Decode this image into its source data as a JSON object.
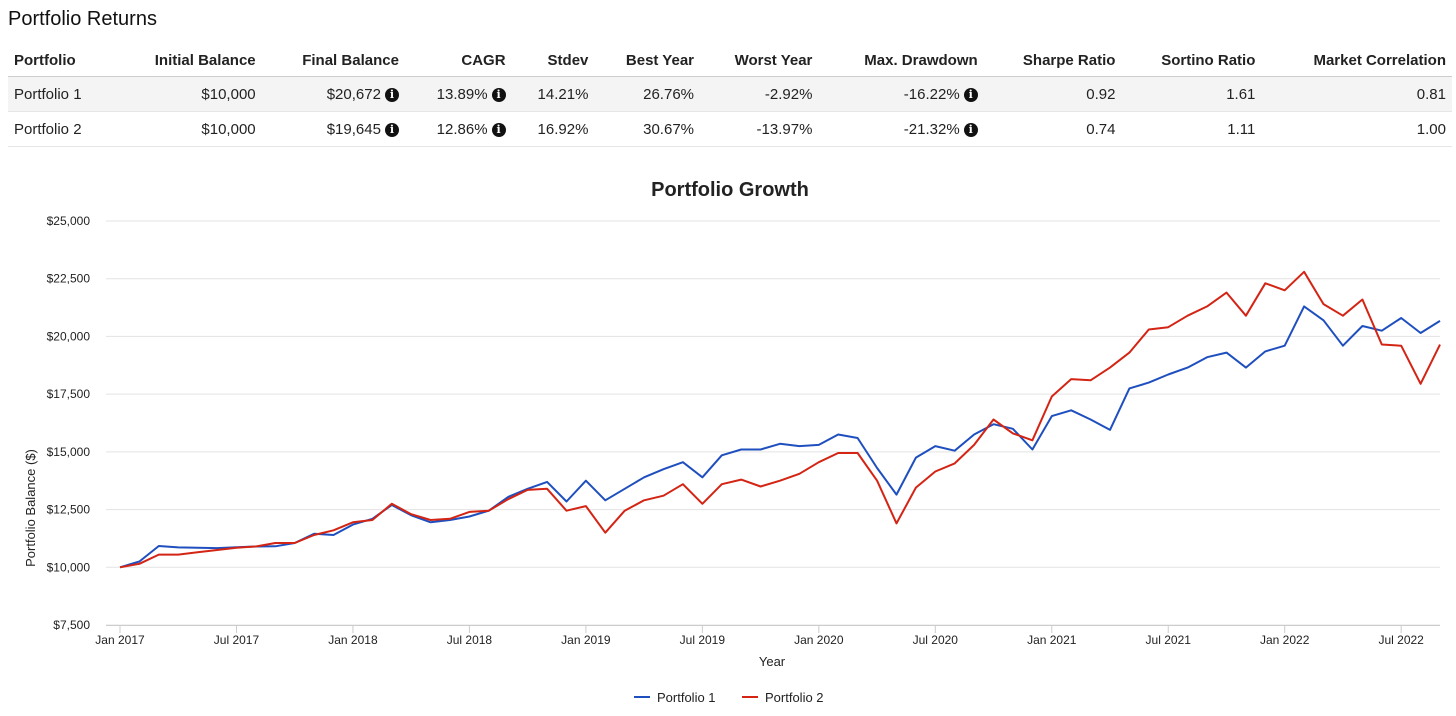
{
  "title": "Portfolio Returns",
  "table": {
    "headers": [
      "Portfolio",
      "Initial Balance",
      "Final Balance",
      "CAGR",
      "Stdev",
      "Best Year",
      "Worst Year",
      "Max. Drawdown",
      "Sharpe Ratio",
      "Sortino Ratio",
      "Market Correlation"
    ],
    "rows": [
      {
        "portfolio": "Portfolio 1",
        "initial": "$10,000",
        "final": "$20,672",
        "cagr": "13.89%",
        "stdev": "14.21%",
        "best": "26.76%",
        "worst": "-2.92%",
        "drawdown": "-16.22%",
        "sharpe": "0.92",
        "sortino": "1.61",
        "correlation": "0.81"
      },
      {
        "portfolio": "Portfolio 2",
        "initial": "$10,000",
        "final": "$19,645",
        "cagr": "12.86%",
        "stdev": "16.92%",
        "best": "30.67%",
        "worst": "-13.97%",
        "drawdown": "-21.32%",
        "sharpe": "0.74",
        "sortino": "1.11",
        "correlation": "1.00"
      }
    ],
    "info_icon": "info-circle-icon"
  },
  "chart_data": {
    "type": "line",
    "title": "Portfolio Growth",
    "xlabel": "Year",
    "ylabel": "Portfolio Balance ($)",
    "ylim": [
      7500,
      25000
    ],
    "yticks": [
      {
        "value": 7500,
        "label": "$7,500"
      },
      {
        "value": 10000,
        "label": "$10,000"
      },
      {
        "value": 12500,
        "label": "$12,500"
      },
      {
        "value": 15000,
        "label": "$15,000"
      },
      {
        "value": 17500,
        "label": "$17,500"
      },
      {
        "value": 20000,
        "label": "$20,000"
      },
      {
        "value": 22500,
        "label": "$22,500"
      },
      {
        "value": 25000,
        "label": "$25,000"
      }
    ],
    "xlim": [
      "2017-01",
      "2022-09"
    ],
    "xticks": [
      {
        "value": "2017-01",
        "label": "Jan 2017"
      },
      {
        "value": "2017-07",
        "label": "Jul 2017"
      },
      {
        "value": "2018-01",
        "label": "Jan 2018"
      },
      {
        "value": "2018-07",
        "label": "Jul 2018"
      },
      {
        "value": "2019-01",
        "label": "Jan 2019"
      },
      {
        "value": "2019-07",
        "label": "Jul 2019"
      },
      {
        "value": "2020-01",
        "label": "Jan 2020"
      },
      {
        "value": "2020-07",
        "label": "Jul 2020"
      },
      {
        "value": "2021-01",
        "label": "Jan 2021"
      },
      {
        "value": "2021-07",
        "label": "Jul 2021"
      },
      {
        "value": "2022-01",
        "label": "Jan 2022"
      },
      {
        "value": "2022-07",
        "label": "Jul 2022"
      }
    ],
    "grid": true,
    "legend": "bottom-center",
    "series": [
      {
        "name": "Portfolio 1",
        "color": "#1f4fbf",
        "start": "2017-01",
        "values": [
          10000,
          10250,
          10920,
          10860,
          10850,
          10830,
          10870,
          10900,
          10910,
          11050,
          11450,
          11400,
          11850,
          12100,
          12700,
          12250,
          11950,
          12050,
          12200,
          12450,
          13050,
          13400,
          13700,
          12850,
          13750,
          12900,
          13400,
          13900,
          14250,
          14550,
          13900,
          14850,
          15100,
          15100,
          15350,
          15250,
          15300,
          15750,
          15600,
          14300,
          13150,
          14750,
          15250,
          15050,
          15750,
          16200,
          16000,
          15100,
          16550,
          16800,
          16400,
          15950,
          17750,
          18000,
          18350,
          18650,
          19100,
          19300,
          18650,
          19350,
          19600,
          21300,
          20700,
          19600,
          20450,
          20250,
          20800,
          20150,
          20672
        ]
      },
      {
        "name": "Portfolio 2",
        "color": "#d32414",
        "start": "2017-01",
        "values": [
          10000,
          10150,
          10550,
          10550,
          10650,
          10750,
          10850,
          10900,
          11050,
          11050,
          11400,
          11600,
          11950,
          12050,
          12750,
          12300,
          12050,
          12100,
          12400,
          12450,
          12950,
          13350,
          13400,
          12450,
          12650,
          11500,
          12450,
          12900,
          13100,
          13600,
          12750,
          13600,
          13800,
          13500,
          13750,
          14050,
          14550,
          14950,
          14950,
          13750,
          11900,
          13450,
          14150,
          14500,
          15300,
          16400,
          15800,
          15500,
          17400,
          18150,
          18100,
          18650,
          19300,
          20300,
          20400,
          20900,
          21300,
          21900,
          20900,
          22300,
          22000,
          22800,
          21400,
          20900,
          21600,
          19650,
          19600,
          17950,
          19645
        ]
      }
    ]
  }
}
